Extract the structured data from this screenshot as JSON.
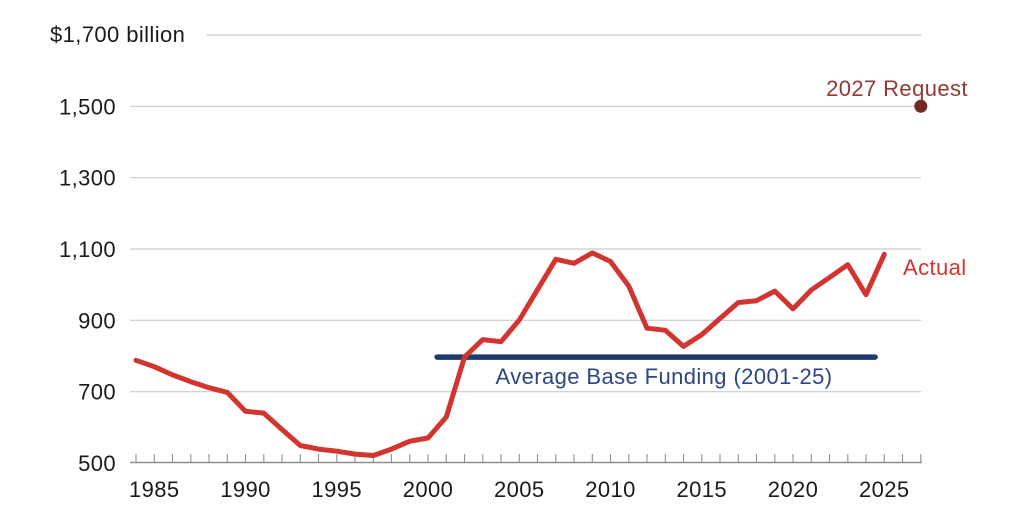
{
  "chart_data": {
    "type": "line",
    "title": "$1,700 billion",
    "unit": "billions of dollars",
    "y_axis": {
      "top_label": "$1,700 billion",
      "tick_values": [
        500,
        700,
        900,
        1100,
        1300,
        1500
      ],
      "tick_labels": [
        "500",
        "700",
        "900",
        "1,100",
        "1,300",
        "1,500"
      ],
      "gridline_values": [
        700,
        900,
        1100,
        1300,
        1500,
        1700
      ],
      "range": [
        500,
        1700
      ]
    },
    "x_axis": {
      "start": 1984,
      "end": 2027,
      "tick_interval": 1,
      "label_years": [
        1985,
        1990,
        1995,
        2000,
        2005,
        2010,
        2015,
        2020,
        2025
      ]
    },
    "series": [
      {
        "name": "Actual",
        "color": "#d23430",
        "x": [
          1984,
          1985,
          1986,
          1987,
          1988,
          1989,
          1990,
          1991,
          1992,
          1993,
          1994,
          1995,
          1996,
          1997,
          1998,
          1999,
          2000,
          2001,
          2002,
          2003,
          2004,
          2005,
          2006,
          2007,
          2008,
          2009,
          2010,
          2011,
          2012,
          2013,
          2014,
          2015,
          2016,
          2017,
          2018,
          2019,
          2020,
          2021,
          2022,
          2023,
          2024,
          2025
        ],
        "values": [
          788,
          770,
          747,
          728,
          711,
          698,
          645,
          640,
          594,
          549,
          539,
          533,
          525,
          521,
          539,
          561,
          570,
          629,
          797,
          846,
          840,
          901,
          986,
          1071,
          1060,
          1089,
          1065,
          996,
          878,
          872,
          827,
          860,
          905,
          950,
          955,
          982,
          932,
          985,
          1020,
          1056,
          972,
          1085
        ]
      }
    ],
    "average_line": {
      "label": "Average Base Funding (2001-25)",
      "value": 797,
      "start_year": 2001,
      "end_year": 2025,
      "color": "#1f3a6b",
      "label_color": "#2e4585"
    },
    "request_point": {
      "label": "2027 Request",
      "year": 2027,
      "value": 1500,
      "color": "#722a24",
      "label_color": "#8f3a33"
    },
    "colors": {
      "grid": "#cbcbcb",
      "axis": "#8f8f8f",
      "text": "#1b1b1b",
      "background": "#ffffff"
    }
  }
}
